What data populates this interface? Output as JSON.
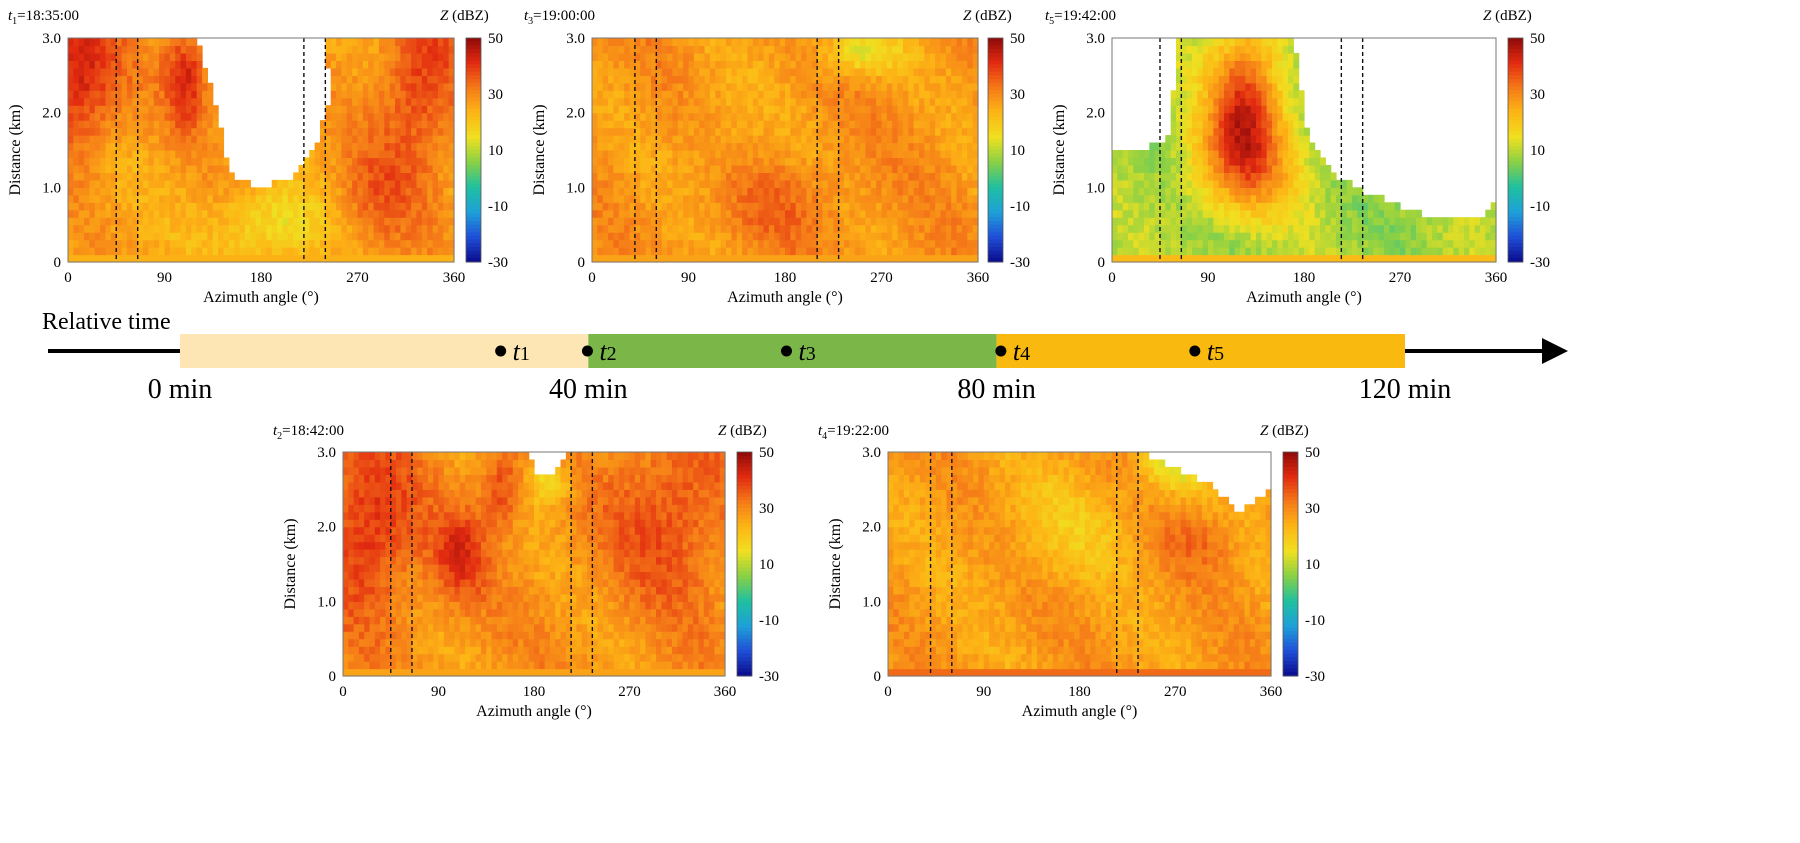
{
  "timeline": {
    "label": "Relative time",
    "segments": [
      {
        "from": 0,
        "to": 40,
        "color": "#fde5b4"
      },
      {
        "from": 40,
        "to": 80,
        "color": "#7ab648"
      },
      {
        "from": 80,
        "to": 120,
        "color": "#f9b90e"
      }
    ],
    "ticks": [
      "0 min",
      "40 min",
      "80 min",
      "120 min"
    ],
    "tick_values": [
      0,
      40,
      80,
      120
    ],
    "events": [
      {
        "symbol": "t",
        "sub": "1",
        "minute": 32
      },
      {
        "symbol": "t",
        "sub": "2",
        "minute": 40.5
      },
      {
        "symbol": "t",
        "sub": "3",
        "minute": 60
      },
      {
        "symbol": "t",
        "sub": "4",
        "minute": 81
      },
      {
        "symbol": "t",
        "sub": "5",
        "minute": 100
      }
    ]
  },
  "colorbar_colors": [
    "#0b0b8c",
    "#1f4fd8",
    "#1ea0d8",
    "#1fc0a0",
    "#88d046",
    "#f0e020",
    "#fdb515",
    "#f57a18",
    "#e22a10",
    "#8e0a0a"
  ],
  "chart_data": [
    {
      "type": "heatmap",
      "id": "t1",
      "time_symbol": "t",
      "time_sub": "1",
      "time_value": "=18:35:00",
      "xlabel": "Azimuth angle (°)",
      "ylabel": "Distance (km)",
      "xlim": [
        0,
        360
      ],
      "ylim": [
        0,
        3.0
      ],
      "xticks": [
        "0",
        "90",
        "180",
        "270",
        "360"
      ],
      "xtick_values": [
        0,
        90,
        180,
        270,
        360
      ],
      "yticks": [
        "0",
        "1.0",
        "2.0",
        "3.0"
      ],
      "ytick_values": [
        0,
        1,
        2,
        3
      ],
      "colorbar": {
        "label_sym": "Z",
        "label_unit": " (dBZ)",
        "ticks": [
          "50",
          "30",
          "10",
          "-10",
          "-30"
        ],
        "tick_values": [
          50,
          30,
          10,
          -10,
          -30
        ],
        "range": [
          -30,
          50
        ]
      },
      "dashed_lines_deg": [
        45,
        65,
        220,
        240
      ],
      "field": {
        "base": 26,
        "near_ground": 24,
        "hot_zones": [
          [
            10,
            2.5,
            40,
            1.0,
            18
          ],
          [
            110,
            2.5,
            20,
            0.7,
            16
          ],
          [
            330,
            2.4,
            40,
            1.2,
            14
          ],
          [
            285,
            0.8,
            40,
            0.8,
            8
          ]
        ],
        "gaps": [
          [
            [
              120,
              3.0
            ],
            [
              140,
              2.0
            ],
            [
              150,
              1.2
            ],
            [
              175,
              1.0
            ],
            [
              205,
              1.1
            ],
            [
              230,
              1.5
            ],
            [
              245,
              2.2
            ],
            [
              240,
              3.0
            ]
          ]
        ],
        "weak_zones": [
          [
            190,
            0.5,
            50,
            0.5,
            -12
          ]
        ]
      }
    },
    {
      "type": "heatmap",
      "id": "t3",
      "time_symbol": "t",
      "time_sub": "3",
      "time_value": "=19:00:00",
      "xlabel": "Azimuth angle (°)",
      "ylabel": "Distance (km)",
      "xlim": [
        0,
        360
      ],
      "ylim": [
        0,
        3.0
      ],
      "xticks": [
        "0",
        "90",
        "180",
        "270",
        "360"
      ],
      "xtick_values": [
        0,
        90,
        180,
        270,
        360
      ],
      "yticks": [
        "0",
        "1.0",
        "2.0",
        "3.0"
      ],
      "ytick_values": [
        0,
        1,
        2,
        3
      ],
      "colorbar": {
        "label_sym": "Z",
        "label_unit": " (dBZ)",
        "ticks": [
          "50",
          "30",
          "10",
          "-10",
          "-30"
        ],
        "tick_values": [
          50,
          30,
          10,
          -10,
          -30
        ],
        "range": [
          -30,
          50
        ]
      },
      "dashed_lines_deg": [
        40,
        60,
        210,
        230
      ],
      "field": {
        "base": 28,
        "near_ground": 26,
        "hot_zones": [
          [
            180,
            0.8,
            60,
            0.6,
            5
          ]
        ],
        "gaps": [],
        "weak_zones": [
          [
            250,
            2.8,
            40,
            0.3,
            -14
          ],
          [
            120,
            1.8,
            40,
            0.8,
            -4
          ]
        ]
      }
    },
    {
      "type": "heatmap",
      "id": "t5",
      "time_symbol": "t",
      "time_sub": "5",
      "time_value": "=19:42:00",
      "xlabel": "Azimuth angle (°)",
      "ylabel": "Distance (km)",
      "xlim": [
        0,
        360
      ],
      "ylim": [
        0,
        3.0
      ],
      "xticks": [
        "0",
        "90",
        "180",
        "270",
        "360"
      ],
      "xtick_values": [
        0,
        90,
        180,
        270,
        360
      ],
      "yticks": [
        "0",
        "1.0",
        "2.0",
        "3.0"
      ],
      "ytick_values": [
        0,
        1,
        2,
        3
      ],
      "colorbar": {
        "label_sym": "Z",
        "label_unit": " (dBZ)",
        "ticks": [
          "50",
          "30",
          "10",
          "-10",
          "-30"
        ],
        "tick_values": [
          50,
          30,
          10,
          -10,
          -30
        ],
        "range": [
          -30,
          50
        ]
      },
      "dashed_lines_deg": [
        45,
        65,
        215,
        235
      ],
      "field": {
        "base": 8,
        "near_ground": 22,
        "hot_zones": [
          [
            125,
            2.2,
            35,
            1.0,
            30
          ],
          [
            125,
            1.3,
            55,
            0.7,
            18
          ]
        ],
        "gaps": [
          [
            [
              0,
              3.0
            ],
            [
              0,
              1.5
            ],
            [
              30,
              1.5
            ],
            [
              55,
              1.7
            ],
            [
              60,
              3.0
            ]
          ],
          [
            [
              170,
              3.0
            ],
            [
              185,
              1.6
            ],
            [
              215,
              1.1
            ],
            [
              260,
              0.8
            ],
            [
              300,
              0.6
            ],
            [
              345,
              0.6
            ],
            [
              360,
              0.8
            ],
            [
              360,
              3.0
            ]
          ]
        ],
        "weak_zones": []
      }
    },
    {
      "type": "heatmap",
      "id": "t2",
      "time_symbol": "t",
      "time_sub": "2",
      "time_value": "=18:42:00",
      "xlabel": "Azimuth angle (°)",
      "ylabel": "Distance (km)",
      "xlim": [
        0,
        360
      ],
      "ylim": [
        0,
        3.0
      ],
      "xticks": [
        "0",
        "90",
        "180",
        "270",
        "360"
      ],
      "xtick_values": [
        0,
        90,
        180,
        270,
        360
      ],
      "yticks": [
        "0",
        "1.0",
        "2.0",
        "3.0"
      ],
      "ytick_values": [
        0,
        1,
        2,
        3
      ],
      "colorbar": {
        "label_sym": "Z",
        "label_unit": " (dBZ)",
        "ticks": [
          "50",
          "30",
          "10",
          "-10",
          "-30"
        ],
        "tick_values": [
          50,
          30,
          10,
          -10,
          -30
        ],
        "range": [
          -30,
          50
        ]
      },
      "dashed_lines_deg": [
        45,
        65,
        215,
        235
      ],
      "field": {
        "base": 28,
        "near_ground": 26,
        "hot_zones": [
          [
            25,
            2.0,
            45,
            1.2,
            14
          ],
          [
            310,
            2.2,
            60,
            1.2,
            10
          ],
          [
            110,
            1.6,
            25,
            0.6,
            12
          ],
          [
            150,
            2.5,
            20,
            0.5,
            12
          ]
        ],
        "gaps": [
          [
            [
              175,
              3.0
            ],
            [
              180,
              2.75
            ],
            [
              200,
              2.7
            ],
            [
              210,
              3.0
            ]
          ]
        ],
        "weak_zones": [
          [
            195,
            2.6,
            20,
            0.3,
            -14
          ]
        ]
      }
    },
    {
      "type": "heatmap",
      "id": "t4",
      "time_symbol": "t",
      "time_sub": "4",
      "time_value": "=19:22:00",
      "xlabel": "Azimuth angle (°)",
      "ylabel": "Distance (km)",
      "xlim": [
        0,
        360
      ],
      "ylim": [
        0,
        3.0
      ],
      "xticks": [
        "0",
        "90",
        "180",
        "270",
        "360"
      ],
      "xtick_values": [
        0,
        90,
        180,
        270,
        360
      ],
      "yticks": [
        "0",
        "1.0",
        "2.0",
        "3.0"
      ],
      "ytick_values": [
        0,
        1,
        2,
        3
      ],
      "colorbar": {
        "label_sym": "Z",
        "label_unit": " (dBZ)",
        "ticks": [
          "50",
          "30",
          "10",
          "-10",
          "-30"
        ],
        "tick_values": [
          50,
          30,
          10,
          -10,
          -30
        ],
        "range": [
          -30,
          50
        ]
      },
      "dashed_lines_deg": [
        40,
        60,
        215,
        235
      ],
      "field": {
        "base": 27,
        "near_ground": 34,
        "hot_zones": [
          [
            290,
            1.8,
            40,
            0.4,
            6
          ]
        ],
        "gaps": [
          [
            [
              240,
              3.0
            ],
            [
              265,
              2.8
            ],
            [
              300,
              2.6
            ],
            [
              330,
              2.2
            ],
            [
              360,
              2.5
            ],
            [
              360,
              3.0
            ]
          ]
        ],
        "weak_zones": [
          [
            270,
            2.8,
            30,
            0.3,
            -14
          ],
          [
            170,
            2.0,
            70,
            0.7,
            -6
          ]
        ]
      }
    }
  ]
}
